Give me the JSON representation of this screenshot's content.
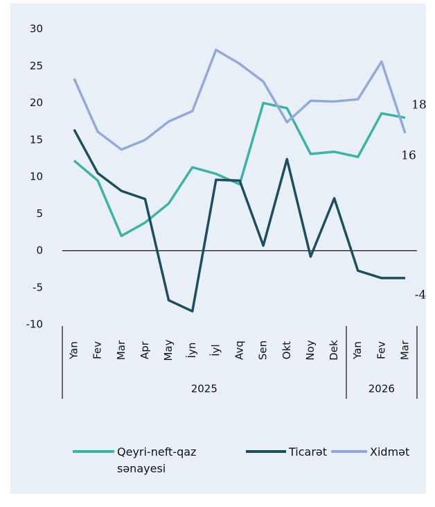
{
  "chart_data": {
    "type": "line",
    "categories": [
      "Yan",
      "Fev",
      "Mar",
      "Apr",
      "May",
      "İyn",
      "İyl",
      "Avq",
      "Sen",
      "Okt",
      "Noy",
      "Dek",
      "Yan",
      "Fev",
      "Mar"
    ],
    "groups": [
      {
        "label": "2025",
        "start": 0,
        "end": 11
      },
      {
        "label": "2026",
        "start": 12,
        "end": 14
      }
    ],
    "ylim": [
      -10,
      30
    ],
    "yticks": [
      -10,
      -5,
      0,
      5,
      10,
      15,
      20,
      25,
      30
    ],
    "series": [
      {
        "name": "Qeyri-neft-qaz sənayesi",
        "color": "#3bb3a6",
        "values": [
          12.2,
          9.5,
          2.0,
          3.8,
          6.4,
          11.3,
          10.4,
          9.0,
          20.0,
          19.3,
          13.1,
          13.4,
          12.7,
          18.6,
          18.0
        ],
        "end_label": "18"
      },
      {
        "name": "Ticarət",
        "color": "#1d4e5f",
        "values": [
          16.4,
          10.5,
          8.1,
          7.0,
          -6.7,
          -8.2,
          9.6,
          9.5,
          0.7,
          12.4,
          -0.8,
          7.1,
          -2.7,
          -3.7,
          -3.7
        ],
        "end_label": "-4"
      },
      {
        "name": "Xidmət",
        "color": "#95a9d9",
        "values": [
          23.3,
          16.1,
          13.7,
          15.0,
          17.5,
          18.9,
          27.2,
          25.3,
          22.9,
          17.4,
          20.3,
          20.2,
          20.5,
          25.6,
          15.9
        ],
        "end_label": "16"
      }
    ]
  }
}
